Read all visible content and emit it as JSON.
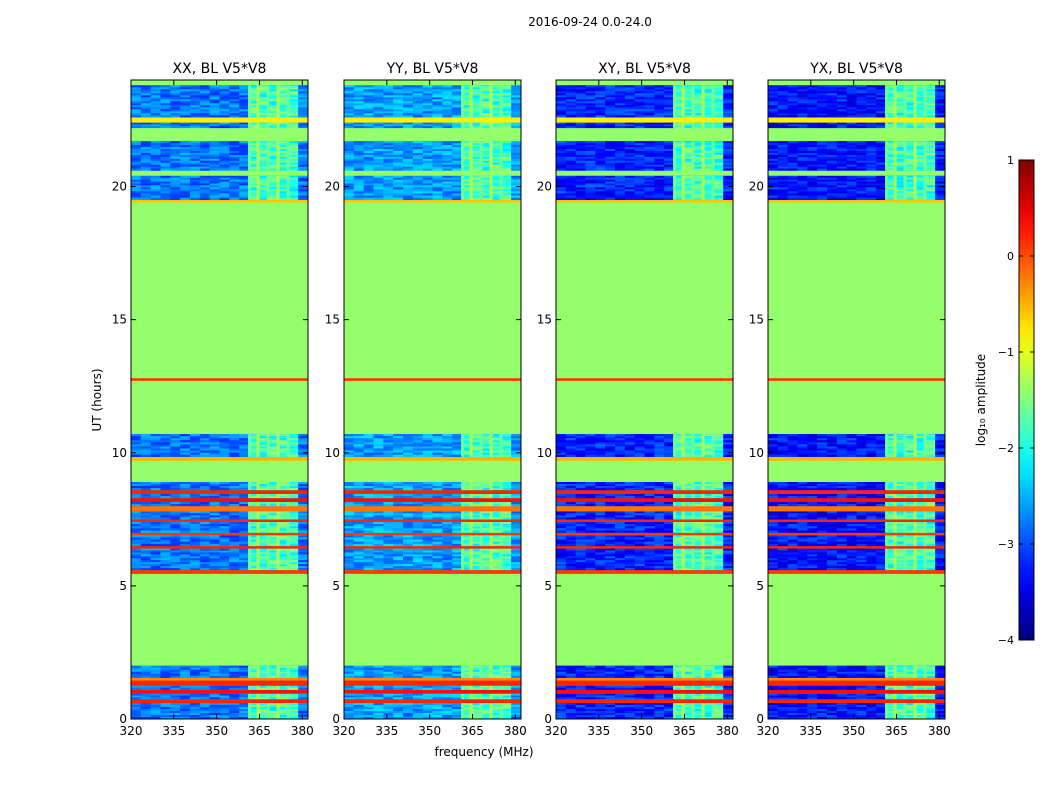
{
  "figure_title": "2016-09-24 0.0-24.0",
  "xlabel": "frequency (MHz)",
  "ylabel": "UT (hours)",
  "colorbar": {
    "label": "log₁₀ amplitude",
    "ticks": [
      -4,
      -3,
      -2,
      -1,
      0,
      1
    ],
    "tick_labels": [
      "−4",
      "−3",
      "−2",
      "−1",
      "0",
      "1"
    ],
    "range": [
      -4,
      1
    ]
  },
  "chart_data": {
    "type": "heatmap",
    "xlim": [
      320,
      382
    ],
    "ylim": [
      0,
      24
    ],
    "x_ticks": [
      320,
      335,
      350,
      365,
      380
    ],
    "x_tick_labels": [
      "320",
      "335",
      "350",
      "365",
      "380"
    ],
    "y_ticks": [
      0,
      5,
      10,
      15,
      20
    ],
    "y_tick_labels": [
      "0",
      "5",
      "10",
      "15",
      "20"
    ],
    "value_scale": "log10 amplitude",
    "masked_value": -1.4,
    "rfi_band_mhz": [
      360,
      378
    ],
    "panels": [
      {
        "title": "XX, BL V5*V8",
        "noise_level": -2.8,
        "interference": "strong"
      },
      {
        "title": "YY, BL V5*V8",
        "noise_level": -2.6,
        "interference": "strong"
      },
      {
        "title": "XY, BL V5*V8",
        "noise_level": -3.2,
        "interference": "strong"
      },
      {
        "title": "YX, BL V5*V8",
        "noise_level": -3.3,
        "interference": "strong"
      }
    ],
    "time_segments": [
      {
        "start": 0.0,
        "end": 0.6,
        "kind": "data"
      },
      {
        "start": 0.6,
        "end": 0.75,
        "kind": "flare",
        "level": 0.2
      },
      {
        "start": 0.75,
        "end": 0.95,
        "kind": "data"
      },
      {
        "start": 0.95,
        "end": 1.1,
        "kind": "flare",
        "level": 0.3
      },
      {
        "start": 1.1,
        "end": 1.25,
        "kind": "data"
      },
      {
        "start": 1.25,
        "end": 1.45,
        "kind": "flare",
        "level": 0.2
      },
      {
        "start": 1.45,
        "end": 1.55,
        "kind": "flare",
        "level": -0.3
      },
      {
        "start": 1.55,
        "end": 2.0,
        "kind": "data"
      },
      {
        "start": 2.0,
        "end": 5.45,
        "kind": "masked"
      },
      {
        "start": 5.45,
        "end": 5.6,
        "kind": "flare",
        "level": 0.1
      },
      {
        "start": 5.6,
        "end": 6.4,
        "kind": "data"
      },
      {
        "start": 6.4,
        "end": 6.5,
        "kind": "flare",
        "level": 0.2
      },
      {
        "start": 6.5,
        "end": 6.9,
        "kind": "data"
      },
      {
        "start": 6.9,
        "end": 7.0,
        "kind": "flare",
        "level": 0.1
      },
      {
        "start": 7.0,
        "end": 7.4,
        "kind": "data"
      },
      {
        "start": 7.4,
        "end": 7.5,
        "kind": "flare",
        "level": 0.2
      },
      {
        "start": 7.5,
        "end": 7.8,
        "kind": "data"
      },
      {
        "start": 7.8,
        "end": 8.0,
        "kind": "flare",
        "level": -0.2
      },
      {
        "start": 8.0,
        "end": 8.15,
        "kind": "data"
      },
      {
        "start": 8.15,
        "end": 8.3,
        "kind": "flare",
        "level": 0.3
      },
      {
        "start": 8.3,
        "end": 8.45,
        "kind": "data"
      },
      {
        "start": 8.45,
        "end": 8.6,
        "kind": "flare",
        "level": 0.2
      },
      {
        "start": 8.6,
        "end": 8.9,
        "kind": "data"
      },
      {
        "start": 8.9,
        "end": 9.7,
        "kind": "masked"
      },
      {
        "start": 9.7,
        "end": 9.85,
        "kind": "flare",
        "level": -0.5
      },
      {
        "start": 9.85,
        "end": 10.7,
        "kind": "data"
      },
      {
        "start": 10.7,
        "end": 12.7,
        "kind": "masked"
      },
      {
        "start": 12.7,
        "end": 12.8,
        "kind": "flare",
        "level": 0.1
      },
      {
        "start": 12.8,
        "end": 19.4,
        "kind": "masked"
      },
      {
        "start": 19.4,
        "end": 19.5,
        "kind": "flare",
        "level": -0.6
      },
      {
        "start": 19.5,
        "end": 19.9,
        "kind": "data"
      },
      {
        "start": 19.9,
        "end": 20.4,
        "kind": "data"
      },
      {
        "start": 20.4,
        "end": 20.6,
        "kind": "masked"
      },
      {
        "start": 20.6,
        "end": 21.7,
        "kind": "data"
      },
      {
        "start": 21.7,
        "end": 22.2,
        "kind": "masked"
      },
      {
        "start": 22.2,
        "end": 22.4,
        "kind": "data"
      },
      {
        "start": 22.4,
        "end": 22.6,
        "kind": "flare",
        "level": -0.8
      },
      {
        "start": 22.6,
        "end": 23.8,
        "kind": "data"
      },
      {
        "start": 23.8,
        "end": 24.0,
        "kind": "masked"
      }
    ]
  }
}
